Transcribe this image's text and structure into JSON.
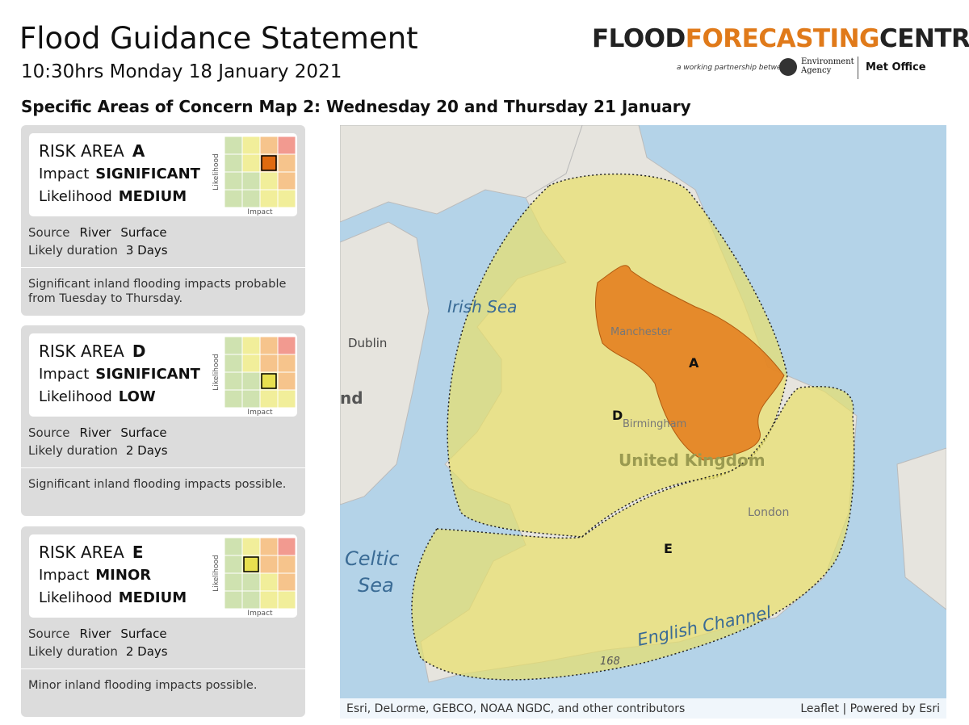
{
  "header": {
    "title": "Flood Guidance Statement",
    "subtitle": "10:30hrs Monday 18 January 2021",
    "logo": {
      "part1": "FLOOD",
      "part2": "FORECASTING",
      "part3": "CENTRE",
      "tagline": "a working partnership between",
      "partner1_line1": "Environment",
      "partner1_line2": "Agency",
      "partner2": "Met Office"
    }
  },
  "map_title": "Specific Areas of Concern Map 2: Wednesday 20 and Thursday 21 January",
  "risk_areas": [
    {
      "label": "RISK AREA",
      "id": "A",
      "impact_label": "Impact",
      "impact": "SIGNIFICANT",
      "likelihood_label": "Likelihood",
      "likelihood": "MEDIUM",
      "matrix_y_label": "Likelihood",
      "matrix_x_label": "Impact",
      "source_label": "Source",
      "sources": [
        "River",
        "Surface"
      ],
      "duration_label": "Likely duration",
      "duration": "3 Days",
      "description": "Significant inland flooding impacts probable from Tuesday to Thursday."
    },
    {
      "label": "RISK AREA",
      "id": "D",
      "impact_label": "Impact",
      "impact": "SIGNIFICANT",
      "likelihood_label": "Likelihood",
      "likelihood": "LOW",
      "matrix_y_label": "Likelihood",
      "matrix_x_label": "Impact",
      "source_label": "Source",
      "sources": [
        "River",
        "Surface"
      ],
      "duration_label": "Likely duration",
      "duration": "2 Days",
      "description": "Significant inland flooding impacts possible."
    },
    {
      "label": "RISK AREA",
      "id": "E",
      "impact_label": "Impact",
      "impact": "MINOR",
      "likelihood_label": "Likelihood",
      "likelihood": "MEDIUM",
      "matrix_y_label": "Likelihood",
      "matrix_x_label": "Impact",
      "source_label": "Source",
      "sources": [
        "River",
        "Surface"
      ],
      "duration_label": "Likely duration",
      "duration": "2 Days",
      "description": "Minor inland flooding impacts possible."
    }
  ],
  "map": {
    "place_labels": [
      "Irish Sea",
      "Dublin",
      "Celtic",
      "Sea",
      "English Channel",
      "Manchester",
      "Birmingham",
      "London",
      "United Kingdom",
      "168",
      "nd"
    ],
    "area_labels": [
      "A",
      "D",
      "E"
    ],
    "attribution_left": "Esri, DeLorme, GEBCO, NOAA NGDC, and other contributors",
    "attribution_right": "Leaflet | Powered by Esri"
  }
}
